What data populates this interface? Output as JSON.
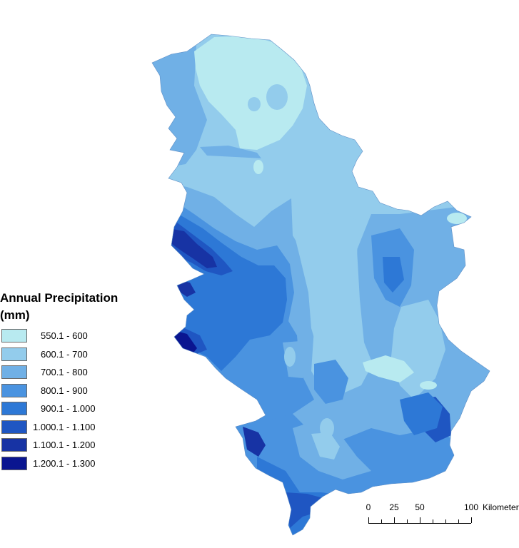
{
  "legend": {
    "title_line1": "Annual Precipitation",
    "title_line2": "(mm)",
    "items": [
      {
        "label": "550.1 - 600",
        "color": "#b8eaf0"
      },
      {
        "label": "600.1 - 700",
        "color": "#93ccec"
      },
      {
        "label": "700.1 - 800",
        "color": "#70b0e6"
      },
      {
        "label": "800.1 - 900",
        "color": "#4a93e0"
      },
      {
        "label": "900.1 - 1.000",
        "color": "#2d78d6"
      },
      {
        "label": "1.000.1 - 1.100",
        "color": "#1f56c2"
      },
      {
        "label": "1.100.1 - 1.200",
        "color": "#1733a4"
      },
      {
        "label": "1.200.1 - 1.300",
        "color": "#0a1590"
      }
    ]
  },
  "scalebar": {
    "ticks": [
      {
        "label": "0",
        "value": 0
      },
      {
        "label": "25",
        "value": 25
      },
      {
        "label": "50",
        "value": 50
      },
      {
        "label": "100",
        "value": 100
      }
    ],
    "unit": "Kilometers"
  }
}
